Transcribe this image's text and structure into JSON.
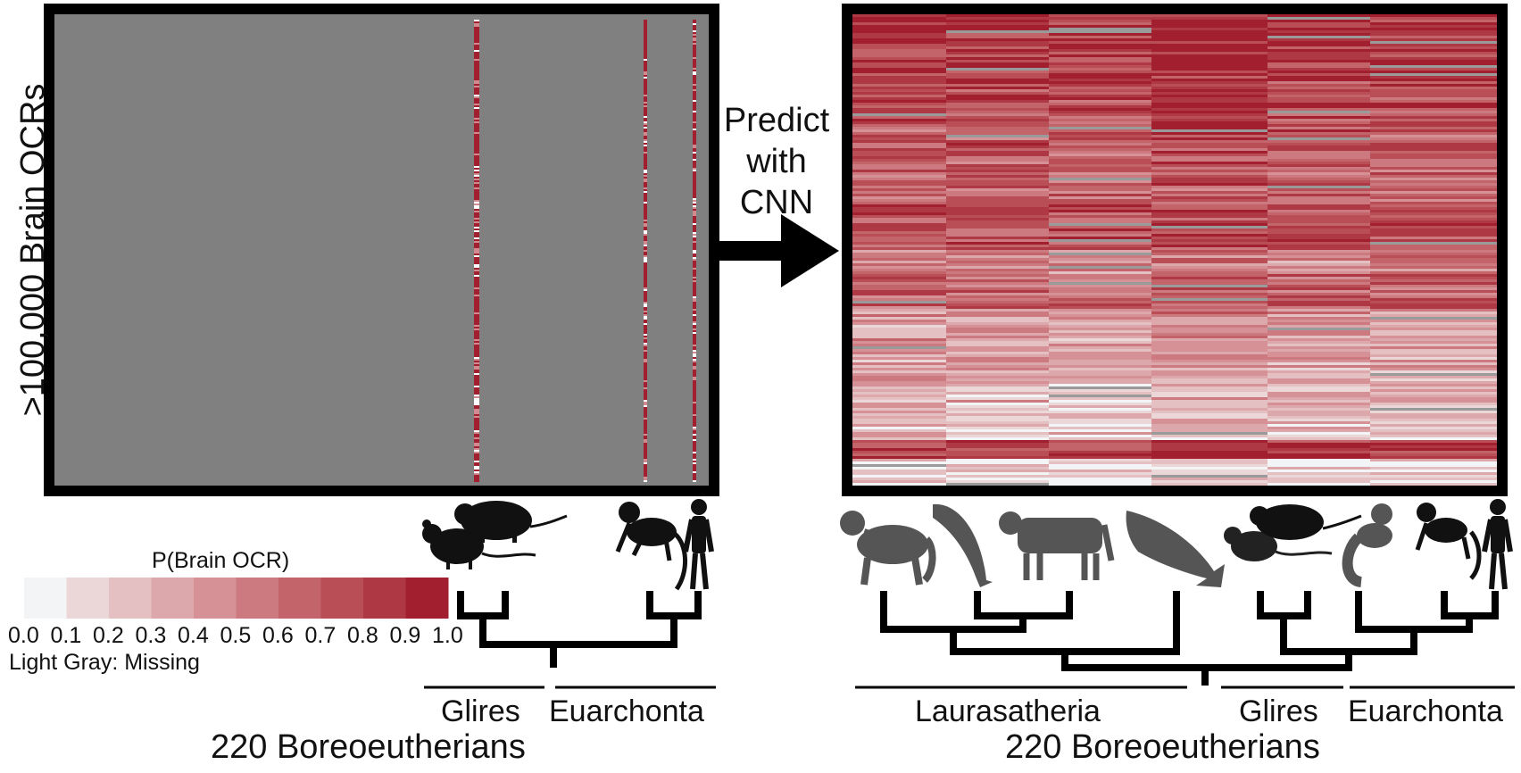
{
  "left_panel": {
    "y_axis_label": ">100,000 Brain OCRs",
    "clade_labels": [
      "Glires",
      "Euarchonta"
    ],
    "species_label": "220 Boreoeutherians"
  },
  "arrow": {
    "lines": [
      "Predict",
      "with",
      "CNN"
    ]
  },
  "right_panel": {
    "clade_labels": [
      "Laurasatheria",
      "Glires",
      "Euarchonta"
    ],
    "species_label": "220 Boreoeutherians"
  },
  "legend": {
    "title": "P(Brain OCR)",
    "ticks": [
      "0.0",
      "0.1",
      "0.2",
      "0.3",
      "0.4",
      "0.5",
      "0.6",
      "0.7",
      "0.8",
      "0.9",
      "1.0"
    ],
    "missing_note": "Light Gray: Missing",
    "colors": [
      "#f3f4f6",
      "#ecd7d8",
      "#e5c0c2",
      "#dda8ab",
      "#d59195",
      "#cc7a80",
      "#c3646b",
      "#b94e57",
      "#ae3843",
      "#a11f2e"
    ]
  },
  "colors": {
    "accent": "#a11f2e",
    "missing_gray": "#808080",
    "frame": "#000000",
    "silhouette_dark": "#111111",
    "silhouette_gray": "#555555"
  }
}
